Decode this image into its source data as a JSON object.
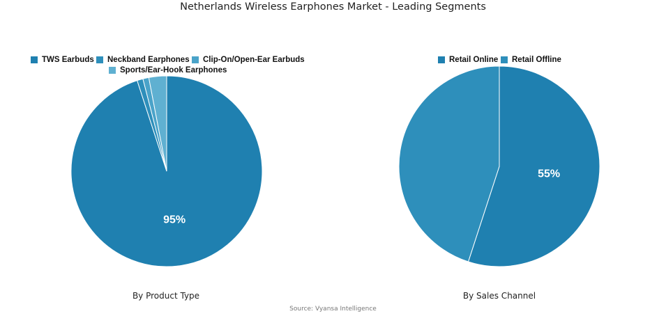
{
  "title": "Netherlands Wireless Earphones Market - Leading Segments",
  "source": "Source: Vyansa Intelligence",
  "chart_data": [
    {
      "type": "pie",
      "subtitle": "By Product Type",
      "slices": [
        {
          "name": "TWS Earbuds",
          "value": 95,
          "label": "95%",
          "color": "#1f80b0"
        },
        {
          "name": "Neckband Earphones",
          "value": 1,
          "label": "",
          "color": "#2e8fbb"
        },
        {
          "name": "Clip-On/Open-Ear Earbuds",
          "value": 1,
          "label": "",
          "color": "#4aa3c9"
        },
        {
          "name": "Sports/Ear-Hook Earphones",
          "value": 3,
          "label": "",
          "color": "#5fb0d1"
        }
      ]
    },
    {
      "type": "pie",
      "subtitle": "By Sales Channel",
      "slices": [
        {
          "name": "Retail Online",
          "value": 55,
          "label": "55%",
          "color": "#1f80b0"
        },
        {
          "name": "Retail Offline",
          "value": 45,
          "label": "",
          "color": "#2e8fbb"
        }
      ]
    }
  ]
}
